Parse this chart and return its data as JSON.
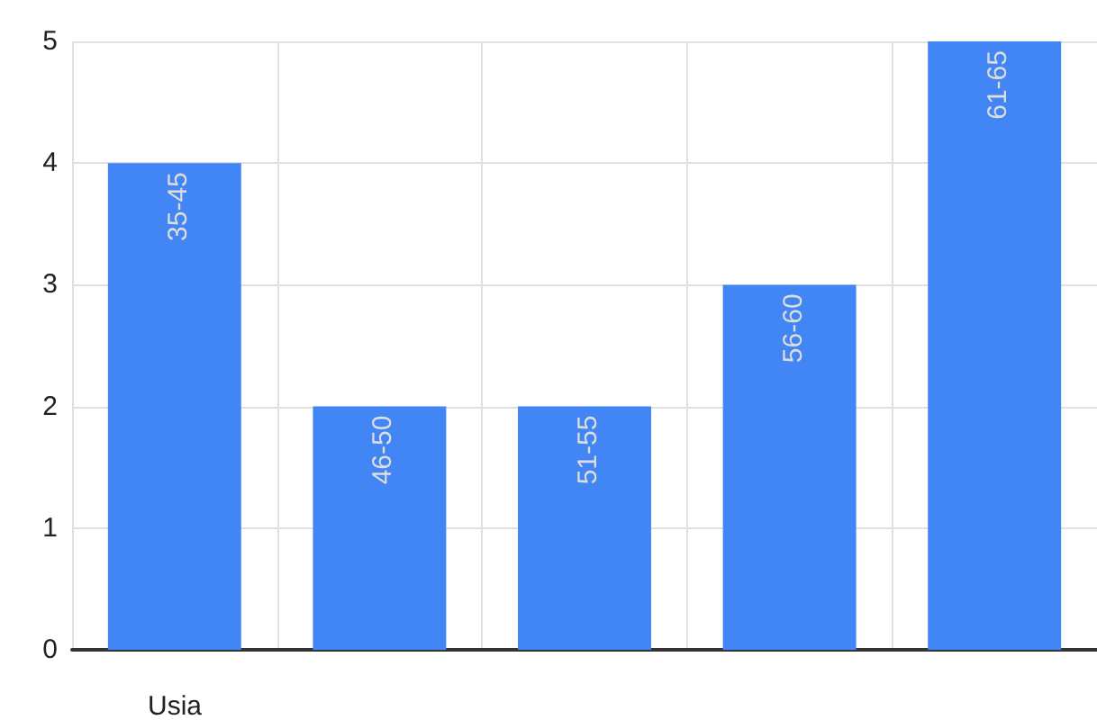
{
  "chart_data": {
    "type": "bar",
    "xlabel": "Usia",
    "categories": [
      "35-45",
      "46-50",
      "51-55",
      "56-60",
      "61-65"
    ],
    "values": [
      4,
      2,
      2,
      3,
      5
    ],
    "color": "#4285f4",
    "ylim": [
      0,
      5
    ],
    "yticks": [
      0,
      1,
      2,
      3,
      4,
      5
    ],
    "grid": true
  }
}
